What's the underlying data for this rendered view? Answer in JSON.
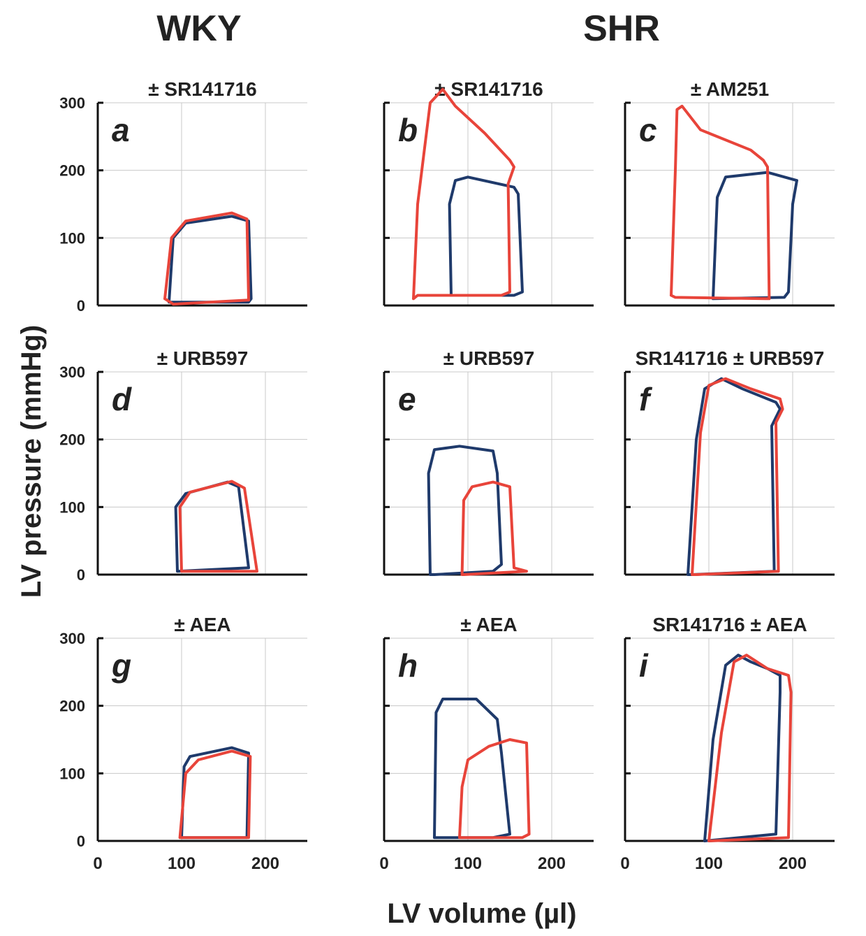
{
  "column_headers": [
    "WKY",
    "SHR"
  ],
  "y_label": "LV pressure (mmHg)",
  "x_label": "LV volume (µl)",
  "chart_data": [
    {
      "type": "line",
      "title": "± SR141716",
      "panel": "a",
      "xlim": [
        0,
        250
      ],
      "ylim": [
        0,
        300
      ],
      "xticks": [
        0,
        100,
        200
      ],
      "yticks": [
        0,
        100,
        200,
        300
      ],
      "grid": true,
      "ytick_labels": true,
      "xtick_labels": false,
      "series": [
        {
          "color": "#1f3a6b",
          "x": [
            85,
            90,
            105,
            160,
            180,
            183,
            180,
            85
          ],
          "y": [
            5,
            100,
            122,
            132,
            125,
            10,
            5,
            5
          ]
        },
        {
          "color": "#e8443a",
          "x": [
            80,
            88,
            105,
            160,
            178,
            180,
            90,
            80
          ],
          "y": [
            10,
            100,
            125,
            137,
            128,
            8,
            2,
            10
          ]
        }
      ]
    },
    {
      "type": "line",
      "title": "± SR141716",
      "panel": "b",
      "xlim": [
        0,
        250
      ],
      "ylim": [
        0,
        300
      ],
      "xticks": [
        0,
        100,
        200
      ],
      "yticks": [
        0,
        100,
        200,
        300
      ],
      "grid": true,
      "ytick_labels": false,
      "xtick_labels": false,
      "series": [
        {
          "color": "#1f3a6b",
          "x": [
            80,
            78,
            85,
            100,
            155,
            160,
            165,
            155,
            80
          ],
          "y": [
            15,
            150,
            185,
            190,
            175,
            165,
            20,
            15,
            15
          ]
        },
        {
          "color": "#e8443a",
          "x": [
            35,
            40,
            55,
            70,
            85,
            120,
            150,
            155,
            148,
            150,
            140,
            40,
            35
          ],
          "y": [
            10,
            150,
            300,
            320,
            295,
            255,
            215,
            205,
            180,
            20,
            15,
            15,
            10
          ]
        }
      ]
    },
    {
      "type": "line",
      "title": "± AM251",
      "panel": "c",
      "xlim": [
        0,
        250
      ],
      "ylim": [
        0,
        300
      ],
      "xticks": [
        0,
        100,
        200
      ],
      "yticks": [
        0,
        100,
        200,
        300
      ],
      "grid": true,
      "ytick_labels": false,
      "xtick_labels": false,
      "series": [
        {
          "color": "#1f3a6b",
          "x": [
            105,
            110,
            120,
            170,
            205,
            200,
            195,
            190,
            105
          ],
          "y": [
            10,
            160,
            190,
            197,
            185,
            150,
            20,
            12,
            10
          ]
        },
        {
          "color": "#e8443a",
          "x": [
            55,
            60,
            62,
            68,
            90,
            150,
            165,
            170,
            172,
            168,
            60,
            55
          ],
          "y": [
            15,
            200,
            290,
            295,
            260,
            230,
            215,
            205,
            10,
            10,
            12,
            15
          ]
        }
      ]
    },
    {
      "type": "line",
      "title": "± URB597",
      "panel": "d",
      "xlim": [
        0,
        250
      ],
      "ylim": [
        0,
        300
      ],
      "xticks": [
        0,
        100,
        200
      ],
      "yticks": [
        0,
        100,
        200,
        300
      ],
      "grid": true,
      "ytick_labels": true,
      "xtick_labels": false,
      "series": [
        {
          "color": "#1f3a6b",
          "x": [
            95,
            93,
            105,
            155,
            168,
            180,
            95
          ],
          "y": [
            5,
            100,
            120,
            137,
            130,
            10,
            5
          ]
        },
        {
          "color": "#e8443a",
          "x": [
            100,
            98,
            110,
            160,
            175,
            190,
            100
          ],
          "y": [
            5,
            100,
            122,
            138,
            128,
            5,
            5
          ]
        }
      ]
    },
    {
      "type": "line",
      "title": "± URB597",
      "panel": "e",
      "xlim": [
        0,
        250
      ],
      "ylim": [
        0,
        300
      ],
      "xticks": [
        0,
        100,
        200
      ],
      "yticks": [
        0,
        100,
        200,
        300
      ],
      "grid": true,
      "ytick_labels": false,
      "xtick_labels": false,
      "series": [
        {
          "color": "#1f3a6b",
          "x": [
            55,
            53,
            60,
            90,
            130,
            135,
            140,
            130,
            60,
            55
          ],
          "y": [
            0,
            150,
            185,
            190,
            183,
            150,
            15,
            5,
            0,
            0
          ]
        },
        {
          "color": "#e8443a",
          "x": [
            93,
            95,
            105,
            130,
            150,
            155,
            170,
            95,
            93
          ],
          "y": [
            0,
            110,
            130,
            137,
            130,
            10,
            5,
            0,
            0
          ]
        }
      ]
    },
    {
      "type": "line",
      "title": "SR141716 ± URB597",
      "panel": "f",
      "xlim": [
        0,
        250
      ],
      "ylim": [
        0,
        300
      ],
      "xticks": [
        0,
        100,
        200
      ],
      "yticks": [
        0,
        100,
        200,
        300
      ],
      "grid": true,
      "ytick_labels": false,
      "xtick_labels": false,
      "series": [
        {
          "color": "#1f3a6b",
          "x": [
            75,
            85,
            95,
            115,
            140,
            180,
            185,
            175,
            178,
            80,
            75
          ],
          "y": [
            0,
            200,
            275,
            290,
            275,
            255,
            245,
            220,
            5,
            0,
            0
          ]
        },
        {
          "color": "#e8443a",
          "x": [
            80,
            90,
            100,
            120,
            150,
            185,
            188,
            180,
            183,
            85,
            80
          ],
          "y": [
            0,
            210,
            280,
            290,
            275,
            260,
            245,
            225,
            5,
            0,
            0
          ]
        }
      ]
    },
    {
      "type": "line",
      "title": "± AEA",
      "panel": "g",
      "xlim": [
        0,
        250
      ],
      "ylim": [
        0,
        300
      ],
      "xticks": [
        0,
        100,
        200
      ],
      "yticks": [
        0,
        100,
        200,
        300
      ],
      "grid": true,
      "ytick_labels": true,
      "xtick_labels": true,
      "series": [
        {
          "color": "#1f3a6b",
          "x": [
            100,
            103,
            110,
            160,
            180,
            178,
            100
          ],
          "y": [
            5,
            110,
            125,
            138,
            130,
            5,
            5
          ]
        },
        {
          "color": "#e8443a",
          "x": [
            98,
            105,
            120,
            160,
            182,
            180,
            100,
            98
          ],
          "y": [
            5,
            100,
            120,
            133,
            125,
            5,
            5,
            5
          ]
        }
      ]
    },
    {
      "type": "line",
      "title": "± AEA",
      "panel": "h",
      "xlim": [
        0,
        250
      ],
      "ylim": [
        0,
        300
      ],
      "xticks": [
        0,
        100,
        200
      ],
      "yticks": [
        0,
        100,
        200,
        300
      ],
      "grid": true,
      "ytick_labels": false,
      "xtick_labels": true,
      "series": [
        {
          "color": "#1f3a6b",
          "x": [
            60,
            62,
            70,
            110,
            135,
            140,
            150,
            130,
            60
          ],
          "y": [
            5,
            190,
            210,
            210,
            180,
            130,
            10,
            5,
            5
          ]
        },
        {
          "color": "#e8443a",
          "x": [
            90,
            93,
            100,
            125,
            150,
            170,
            173,
            165,
            90
          ],
          "y": [
            5,
            80,
            120,
            140,
            150,
            145,
            10,
            5,
            5
          ]
        }
      ]
    },
    {
      "type": "line",
      "title": "SR141716 ± AEA",
      "panel": "i",
      "xlim": [
        0,
        250
      ],
      "ylim": [
        0,
        300
      ],
      "xticks": [
        0,
        100,
        200
      ],
      "yticks": [
        0,
        100,
        200,
        300
      ],
      "grid": true,
      "ytick_labels": false,
      "xtick_labels": true,
      "series": [
        {
          "color": "#1f3a6b",
          "x": [
            95,
            105,
            120,
            135,
            150,
            170,
            185,
            185,
            180,
            95
          ],
          "y": [
            0,
            150,
            260,
            275,
            265,
            255,
            245,
            220,
            10,
            0
          ]
        },
        {
          "color": "#e8443a",
          "x": [
            100,
            115,
            130,
            145,
            170,
            195,
            198,
            195,
            100
          ],
          "y": [
            0,
            160,
            265,
            275,
            255,
            245,
            220,
            5,
            0
          ]
        }
      ]
    }
  ]
}
